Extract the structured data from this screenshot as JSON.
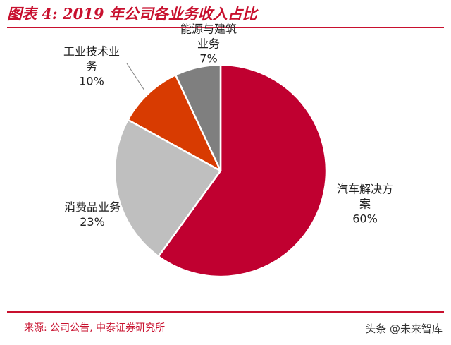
{
  "figure": {
    "title": "图表 4:  2019 年公司各业务收入占比",
    "source": "来源:  公司公告,  中泰证券研究所",
    "watermark": "头条 @未来智库"
  },
  "colors": {
    "accent": "#c8102e",
    "rule": "#c8102e",
    "slice_border": "#ffffff",
    "leader": "#7f7f7f"
  },
  "chart_data": {
    "type": "pie",
    "start_angle_deg": 0,
    "direction": "clockwise",
    "slices": [
      {
        "lines": [
          "汽车解决方",
          "案"
        ],
        "pct_label": "60%",
        "value": 60,
        "color": "#c00030"
      },
      {
        "lines": [
          "消费品业务"
        ],
        "pct_label": "23%",
        "value": 23,
        "color": "#bfbfbf"
      },
      {
        "lines": [
          "工业技术业",
          "务"
        ],
        "pct_label": "10%",
        "value": 10,
        "color": "#d83b01"
      },
      {
        "lines": [
          "能源与建筑",
          "业务"
        ],
        "pct_label": "7%",
        "value": 7,
        "color": "#7f7f7f"
      }
    ]
  }
}
